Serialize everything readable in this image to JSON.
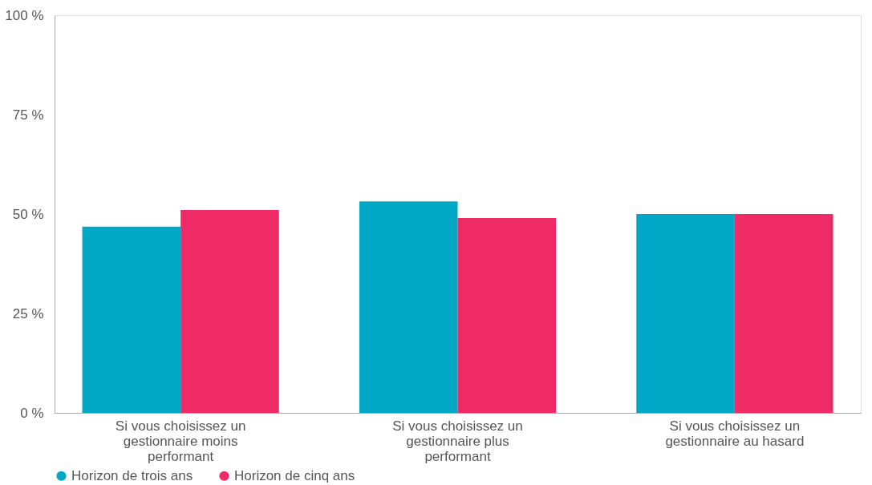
{
  "chart_data": {
    "type": "bar",
    "categories": [
      "Si vous choisissez un gestionnaire moins performant",
      "Si vous choisissez un gestionnaire plus performant",
      "Si vous choisissez un gestionnaire au hasard"
    ],
    "series": [
      {
        "name": "Horizon de trois ans",
        "color": "#00a8c6",
        "values": [
          46.8,
          53.2,
          50.0
        ]
      },
      {
        "name": "Horizon de cinq ans",
        "color": "#ee2b67",
        "values": [
          51.0,
          49.0,
          50.0
        ]
      }
    ],
    "ylim": [
      0,
      100
    ],
    "yticks": [
      {
        "value": 0,
        "label": "0 %"
      },
      {
        "value": 25,
        "label": "25 %"
      },
      {
        "value": 50,
        "label": "50 %"
      },
      {
        "value": 75,
        "label": "75 %"
      },
      {
        "value": 100,
        "label": "100 %"
      }
    ],
    "grid": false,
    "legend": "bottom"
  }
}
